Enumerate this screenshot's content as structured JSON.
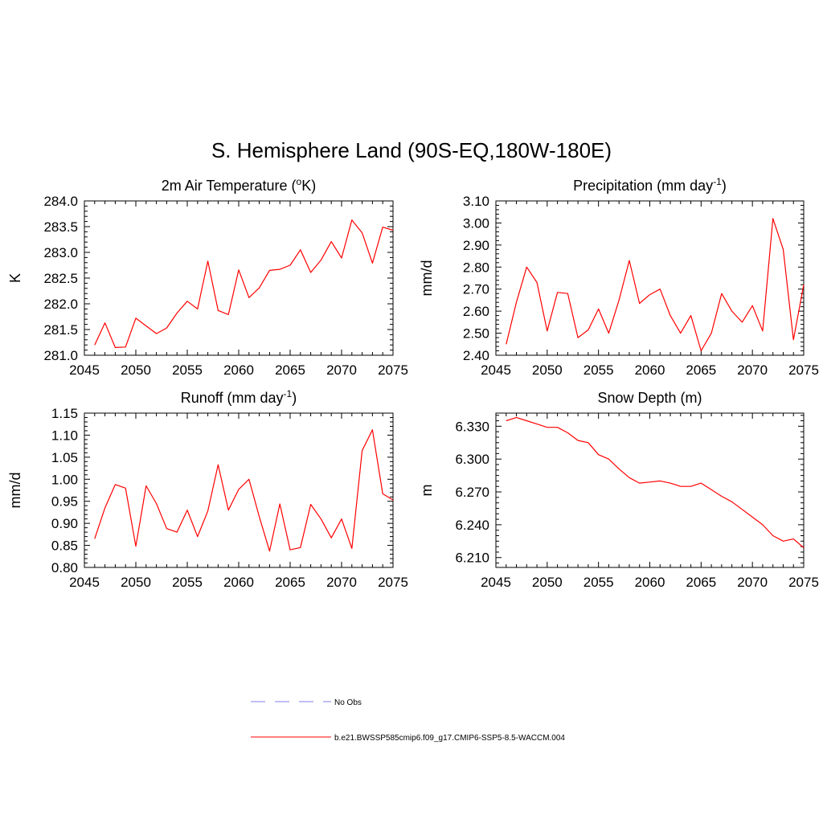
{
  "title": "S. Hemisphere Land (90S-EQ,180W-180E)",
  "legend": {
    "no_obs_label": "No Obs",
    "run_label": "b.e21.BWSSP585cmip6.f09_g17.CMIP6-SSP5-8.5-WACCM.004",
    "no_obs_color": "#9999ee",
    "run_color": "#ff0000"
  },
  "chart_data": [
    {
      "type": "line",
      "title_main": "2m Air Temperature (",
      "title_sup": "o",
      "title_tail": "K)",
      "xlabel": "",
      "ylabel": "K",
      "xlim": [
        2045,
        2075
      ],
      "ylim": [
        281.0,
        284.0
      ],
      "xticks": [
        2045,
        2050,
        2055,
        2060,
        2065,
        2070,
        2075
      ],
      "xtick_labels": [
        "2045",
        "2050",
        "2055",
        "2060",
        "2065",
        "2070",
        "2075"
      ],
      "yticks": [
        281.0,
        281.5,
        282.0,
        282.5,
        283.0,
        283.5,
        284.0
      ],
      "ytick_labels": [
        "281.0",
        "281.5",
        "282.0",
        "282.5",
        "283.0",
        "283.5",
        "284.0"
      ],
      "x_minor_step": 1,
      "y_minor_step": 0.1,
      "series": [
        {
          "name": "b.e21.BWSSP585cmip6.f09_g17.CMIP6-SSP5-8.5-WACCM.004",
          "color": "#ff0000",
          "x": [
            2046,
            2047,
            2048,
            2049,
            2050,
            2051,
            2052,
            2053,
            2054,
            2055,
            2056,
            2057,
            2058,
            2059,
            2060,
            2061,
            2062,
            2063,
            2064,
            2065,
            2066,
            2067,
            2068,
            2069,
            2070,
            2071,
            2072,
            2073,
            2074,
            2075
          ],
          "y": [
            281.2,
            281.63,
            281.15,
            281.16,
            281.72,
            281.57,
            281.42,
            281.53,
            281.82,
            282.05,
            281.9,
            282.83,
            281.87,
            281.79,
            282.66,
            282.12,
            282.31,
            282.65,
            282.67,
            282.75,
            283.05,
            282.61,
            282.85,
            283.21,
            282.89,
            283.63,
            283.38,
            282.79,
            283.49,
            283.43
          ]
        }
      ]
    },
    {
      "type": "line",
      "title_main": "Precipitation (mm day",
      "title_sup": "-1",
      "title_tail": ")",
      "xlabel": "",
      "ylabel": "mm/d",
      "xlim": [
        2045,
        2075
      ],
      "ylim": [
        2.4,
        3.1
      ],
      "xticks": [
        2045,
        2050,
        2055,
        2060,
        2065,
        2070,
        2075
      ],
      "xtick_labels": [
        "2045",
        "2050",
        "2055",
        "2060",
        "2065",
        "2070",
        "2075"
      ],
      "yticks": [
        2.4,
        2.5,
        2.6,
        2.7,
        2.8,
        2.9,
        3.0,
        3.1
      ],
      "ytick_labels": [
        "2.40",
        "2.50",
        "2.60",
        "2.70",
        "2.80",
        "2.90",
        "3.00",
        "3.10"
      ],
      "x_minor_step": 1,
      "y_minor_step": 0.02,
      "series": [
        {
          "name": "b.e21.BWSSP585cmip6.f09_g17.CMIP6-SSP5-8.5-WACCM.004",
          "color": "#ff0000",
          "x": [
            2046,
            2047,
            2048,
            2049,
            2050,
            2051,
            2052,
            2053,
            2054,
            2055,
            2056,
            2057,
            2058,
            2059,
            2060,
            2061,
            2062,
            2063,
            2064,
            2065,
            2066,
            2067,
            2068,
            2069,
            2070,
            2071,
            2072,
            2073,
            2074,
            2075
          ],
          "y": [
            2.45,
            2.64,
            2.8,
            2.73,
            2.51,
            2.685,
            2.68,
            2.48,
            2.515,
            2.61,
            2.5,
            2.65,
            2.83,
            2.635,
            2.675,
            2.7,
            2.58,
            2.5,
            2.58,
            2.42,
            2.5,
            2.68,
            2.6,
            2.55,
            2.625,
            2.51,
            3.02,
            2.88,
            2.47,
            2.72
          ]
        }
      ]
    },
    {
      "type": "line",
      "title_main": "Runoff (mm day",
      "title_sup": "-1",
      "title_tail": ")",
      "xlabel": "",
      "ylabel": "mm/d",
      "xlim": [
        2045,
        2075
      ],
      "ylim": [
        0.8,
        1.15
      ],
      "xticks": [
        2045,
        2050,
        2055,
        2060,
        2065,
        2070,
        2075
      ],
      "xtick_labels": [
        "2045",
        "2050",
        "2055",
        "2060",
        "2065",
        "2070",
        "2075"
      ],
      "yticks": [
        0.8,
        0.85,
        0.9,
        0.95,
        1.0,
        1.05,
        1.1,
        1.15
      ],
      "ytick_labels": [
        "0.80",
        "0.85",
        "0.90",
        "0.95",
        "1.00",
        "1.05",
        "1.10",
        "1.15"
      ],
      "x_minor_step": 1,
      "y_minor_step": 0.01,
      "series": [
        {
          "name": "b.e21.BWSSP585cmip6.f09_g17.CMIP6-SSP5-8.5-WACCM.004",
          "color": "#ff0000",
          "x": [
            2046,
            2047,
            2048,
            2049,
            2050,
            2051,
            2052,
            2053,
            2054,
            2055,
            2056,
            2057,
            2058,
            2059,
            2060,
            2061,
            2062,
            2063,
            2064,
            2065,
            2066,
            2067,
            2068,
            2069,
            2070,
            2071,
            2072,
            2073,
            2074,
            2075
          ],
          "y": [
            0.865,
            0.935,
            0.988,
            0.98,
            0.848,
            0.985,
            0.945,
            0.888,
            0.88,
            0.93,
            0.87,
            0.928,
            1.033,
            0.93,
            0.977,
            1.0,
            0.915,
            0.837,
            0.944,
            0.84,
            0.845,
            0.943,
            0.91,
            0.867,
            0.91,
            0.843,
            1.065,
            1.112,
            0.967,
            0.953
          ]
        }
      ]
    },
    {
      "type": "line",
      "title_main": "Snow Depth (m)",
      "title_sup": "",
      "title_tail": "",
      "xlabel": "",
      "ylabel": "m",
      "xlim": [
        2045,
        2075
      ],
      "ylim": [
        6.201,
        6.342
      ],
      "xticks": [
        2045,
        2050,
        2055,
        2060,
        2065,
        2070,
        2075
      ],
      "xtick_labels": [
        "2045",
        "2050",
        "2055",
        "2060",
        "2065",
        "2070",
        "2075"
      ],
      "yticks": [
        6.21,
        6.24,
        6.27,
        6.3,
        6.33
      ],
      "ytick_labels": [
        "6.210",
        "6.240",
        "6.270",
        "6.300",
        "6.330"
      ],
      "x_minor_step": 1,
      "y_minor_step": 0.005,
      "series": [
        {
          "name": "b.e21.BWSSP585cmip6.f09_g17.CMIP6-SSP5-8.5-WACCM.004",
          "color": "#ff0000",
          "x": [
            2046,
            2047,
            2048,
            2049,
            2050,
            2051,
            2052,
            2053,
            2054,
            2055,
            2056,
            2057,
            2058,
            2059,
            2060,
            2061,
            2062,
            2063,
            2064,
            2065,
            2066,
            2067,
            2068,
            2069,
            2070,
            2071,
            2072,
            2073,
            2074,
            2075
          ],
          "y": [
            6.335,
            6.338,
            6.335,
            6.332,
            6.329,
            6.329,
            6.324,
            6.317,
            6.315,
            6.304,
            6.3,
            6.291,
            6.283,
            6.278,
            6.279,
            6.28,
            6.278,
            6.275,
            6.275,
            6.278,
            6.272,
            6.266,
            6.261,
            6.254,
            6.247,
            6.24,
            6.23,
            6.225,
            6.227,
            6.219
          ]
        }
      ]
    }
  ]
}
